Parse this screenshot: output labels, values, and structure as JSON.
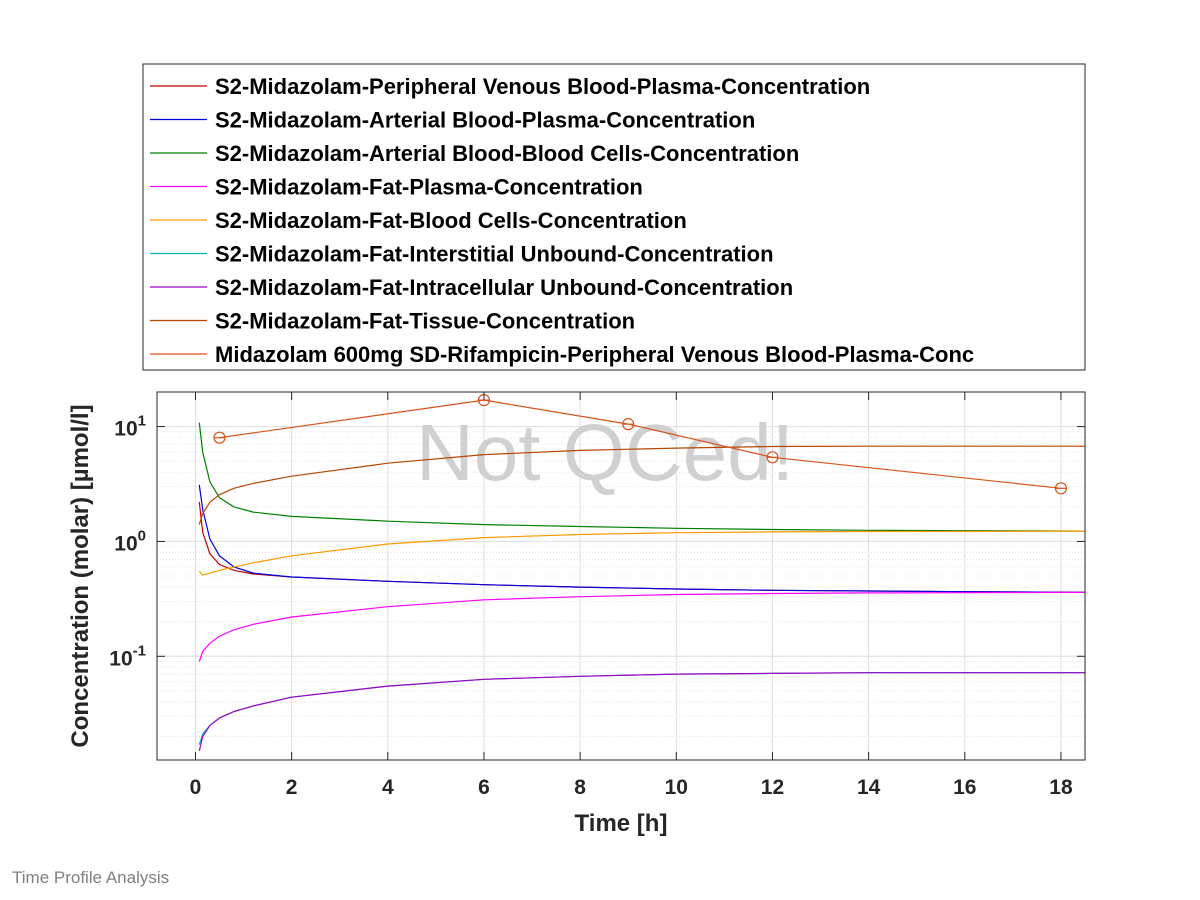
{
  "footer": "Time Profile Analysis",
  "chart_data": {
    "type": "line",
    "xlabel": "Time [h]",
    "ylabel": "Concentration (molar) [µmol/l]",
    "watermark": "Not QCed!",
    "xlim": [
      -0.8,
      18.5
    ],
    "ylim": [
      0.0125,
      20
    ],
    "y_scale": "log",
    "x_ticks": [
      0,
      2,
      4,
      6,
      8,
      10,
      12,
      14,
      16,
      18
    ],
    "y_ticks": [
      {
        "base": "10",
        "exp": "-1",
        "value": 0.1
      },
      {
        "base": "10",
        "exp": "0",
        "value": 1
      },
      {
        "base": "10",
        "exp": "1",
        "value": 10
      }
    ],
    "grid": true,
    "legend_position": "top, outside plot",
    "series": [
      {
        "name": "S2-Midazolam-Peripheral Venous Blood-Plasma-Concentration",
        "color": "#c00000",
        "x": [
          0.08,
          0.15,
          0.3,
          0.5,
          0.8,
          1.2,
          2,
          4,
          6,
          8,
          10,
          12,
          14,
          16,
          18.5
        ],
        "y": [
          2.2,
          1.2,
          0.78,
          0.63,
          0.56,
          0.52,
          0.49,
          0.45,
          0.42,
          0.4,
          0.385,
          0.375,
          0.37,
          0.365,
          0.36
        ]
      },
      {
        "name": "S2-Midazolam-Arterial Blood-Plasma-Concentration",
        "color": "#0000e6",
        "x": [
          0.08,
          0.15,
          0.3,
          0.5,
          0.8,
          1.2,
          2,
          4,
          6,
          8,
          10,
          12,
          14,
          16,
          18.5
        ],
        "y": [
          3.1,
          1.9,
          1.05,
          0.75,
          0.6,
          0.53,
          0.49,
          0.45,
          0.42,
          0.4,
          0.385,
          0.375,
          0.37,
          0.365,
          0.36
        ]
      },
      {
        "name": "S2-Midazolam-Arterial Blood-Blood Cells-Concentration",
        "color": "#008000",
        "x": [
          0.08,
          0.15,
          0.3,
          0.5,
          0.8,
          1.2,
          2,
          4,
          6,
          8,
          10,
          12,
          14,
          16,
          18.5
        ],
        "y": [
          10.8,
          6.0,
          3.3,
          2.4,
          2.0,
          1.8,
          1.65,
          1.5,
          1.4,
          1.35,
          1.3,
          1.27,
          1.25,
          1.24,
          1.23
        ]
      },
      {
        "name": "S2-Midazolam-Fat-Plasma-Concentration",
        "color": "#ff00ff",
        "x": [
          0.08,
          0.15,
          0.3,
          0.5,
          0.8,
          1.2,
          2,
          4,
          6,
          8,
          10,
          12,
          14,
          16,
          18.5
        ],
        "y": [
          0.09,
          0.11,
          0.13,
          0.15,
          0.17,
          0.19,
          0.22,
          0.27,
          0.31,
          0.33,
          0.345,
          0.352,
          0.356,
          0.358,
          0.36
        ]
      },
      {
        "name": "S2-Midazolam-Fat-Blood Cells-Concentration",
        "color": "#ff9900",
        "x": [
          0.08,
          0.15,
          0.3,
          0.5,
          0.8,
          1.2,
          2,
          4,
          6,
          8,
          10,
          12,
          14,
          16,
          18.5
        ],
        "y": [
          0.55,
          0.51,
          0.53,
          0.56,
          0.6,
          0.65,
          0.75,
          0.95,
          1.08,
          1.15,
          1.19,
          1.21,
          1.22,
          1.22,
          1.23
        ]
      },
      {
        "name": "S2-Midazolam-Fat-Interstitial Unbound-Concentration",
        "color": "#00b3b3",
        "x": [
          0.08,
          0.15,
          0.3,
          0.5,
          0.8,
          1.2,
          2,
          4,
          6,
          8,
          10,
          12,
          14,
          16,
          18.5
        ],
        "y": [
          0.017,
          0.021,
          0.025,
          0.029,
          0.033,
          0.037,
          0.044,
          0.055,
          0.063,
          0.067,
          0.07,
          0.071,
          0.072,
          0.072,
          0.072
        ]
      },
      {
        "name": "S2-Midazolam-Fat-Intracellular Unbound-Concentration",
        "color": "#a000c8",
        "x": [
          0.08,
          0.15,
          0.3,
          0.5,
          0.8,
          1.2,
          2,
          4,
          6,
          8,
          10,
          12,
          14,
          16,
          18.5
        ],
        "y": [
          0.015,
          0.02,
          0.025,
          0.029,
          0.033,
          0.037,
          0.044,
          0.055,
          0.063,
          0.067,
          0.07,
          0.071,
          0.072,
          0.072,
          0.072
        ]
      },
      {
        "name": "S2-Midazolam-Fat-Tissue-Concentration",
        "color": "#b34700",
        "x": [
          0.08,
          0.15,
          0.3,
          0.5,
          0.8,
          1.2,
          2,
          4,
          6,
          8,
          10,
          12,
          14,
          16,
          18.5
        ],
        "y": [
          1.4,
          1.75,
          2.2,
          2.55,
          2.9,
          3.2,
          3.7,
          4.8,
          5.7,
          6.2,
          6.5,
          6.7,
          6.75,
          6.75,
          6.75
        ]
      },
      {
        "name": "Midazolam 600mg SD-Rifampicin-Peripheral Venous Blood-Plasma-Conc",
        "color": "#d95319",
        "marker": "circle",
        "x": [
          0.5,
          6,
          9,
          12,
          18
        ],
        "y": [
          8,
          17,
          10.5,
          5.4,
          2.9
        ]
      }
    ]
  }
}
